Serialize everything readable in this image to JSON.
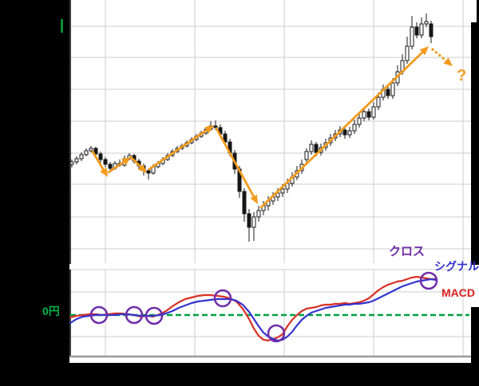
{
  "labels": {
    "cross": "クロス",
    "signal": "シグナル",
    "macd": "MACD",
    "zero_yen": "0円",
    "question": "?"
  },
  "colors": {
    "arrow_orange": "#f29b1d",
    "macd_red": "#d93025",
    "signal_blue": "#3434cf",
    "cross_purple": "#6f2da8",
    "zero_green": "#00a040",
    "candle_up_fill": "#ffffff",
    "candle_down_fill": "#141414",
    "grid_gray": "#cdcdcd"
  },
  "chart_data": [
    {
      "type": "candlestick",
      "panel": "price",
      "title": "",
      "value_units": "relative price units (axis labels blacked out in source)",
      "columns": [
        "x",
        "open",
        "high",
        "low",
        "close"
      ],
      "ylim": [
        0,
        330
      ],
      "grid": true,
      "candles": [
        [
          90,
          124,
          130,
          120,
          127
        ],
        [
          96,
          127,
          134,
          124,
          131
        ],
        [
          102,
          131,
          139,
          128,
          136
        ],
        [
          108,
          136,
          144,
          134,
          141
        ],
        [
          114,
          141,
          147,
          139,
          144
        ],
        [
          120,
          144,
          146,
          134,
          137
        ],
        [
          126,
          137,
          140,
          126,
          130
        ],
        [
          132,
          130,
          133,
          120,
          124
        ],
        [
          138,
          124,
          127,
          115,
          119
        ],
        [
          144,
          119,
          128,
          117,
          125
        ],
        [
          150,
          125,
          130,
          121,
          123
        ],
        [
          156,
          123,
          135,
          121,
          131
        ],
        [
          162,
          131,
          138,
          129,
          135
        ],
        [
          168,
          135,
          137,
          125,
          128
        ],
        [
          174,
          128,
          131,
          118,
          122
        ],
        [
          180,
          122,
          125,
          110,
          116
        ],
        [
          186,
          116,
          119,
          105,
          113
        ],
        [
          192,
          113,
          124,
          111,
          121
        ],
        [
          198,
          121,
          128,
          119,
          125
        ],
        [
          204,
          125,
          133,
          123,
          130
        ],
        [
          210,
          130,
          138,
          128,
          135
        ],
        [
          216,
          135,
          143,
          133,
          140
        ],
        [
          222,
          140,
          147,
          138,
          144
        ],
        [
          228,
          144,
          150,
          142,
          147
        ],
        [
          234,
          147,
          154,
          145,
          151
        ],
        [
          240,
          151,
          158,
          149,
          155
        ],
        [
          246,
          155,
          162,
          153,
          159
        ],
        [
          252,
          159,
          166,
          157,
          163
        ],
        [
          258,
          163,
          171,
          161,
          168
        ],
        [
          264,
          168,
          178,
          166,
          172
        ],
        [
          270,
          172,
          179,
          167,
          170
        ],
        [
          276,
          170,
          174,
          158,
          162
        ],
        [
          282,
          162,
          166,
          148,
          152
        ],
        [
          288,
          152,
          156,
          134,
          138
        ],
        [
          294,
          138,
          142,
          112,
          118
        ],
        [
          300,
          118,
          122,
          82,
          90
        ],
        [
          306,
          90,
          94,
          52,
          62
        ],
        [
          312,
          62,
          68,
          27,
          45
        ],
        [
          318,
          45,
          64,
          28,
          58
        ],
        [
          324,
          58,
          72,
          52,
          66
        ],
        [
          330,
          66,
          78,
          60,
          72
        ],
        [
          336,
          72,
          84,
          66,
          78
        ],
        [
          342,
          78,
          89,
          73,
          83
        ],
        [
          348,
          83,
          94,
          78,
          88
        ],
        [
          354,
          88,
          99,
          83,
          93
        ],
        [
          360,
          93,
          106,
          88,
          100
        ],
        [
          366,
          100,
          114,
          96,
          108
        ],
        [
          372,
          108,
          122,
          104,
          116
        ],
        [
          378,
          116,
          130,
          112,
          124
        ],
        [
          384,
          130,
          144,
          126,
          140
        ],
        [
          390,
          140,
          154,
          136,
          149
        ],
        [
          396,
          149,
          152,
          134,
          139
        ],
        [
          402,
          139,
          150,
          135,
          145
        ],
        [
          408,
          145,
          156,
          141,
          151
        ],
        [
          414,
          151,
          162,
          147,
          157
        ],
        [
          420,
          157,
          167,
          153,
          162
        ],
        [
          426,
          162,
          172,
          158,
          167
        ],
        [
          432,
          167,
          170,
          156,
          161
        ],
        [
          438,
          161,
          171,
          157,
          166
        ],
        [
          444,
          166,
          180,
          162,
          174
        ],
        [
          450,
          174,
          188,
          170,
          182
        ],
        [
          456,
          182,
          196,
          178,
          190
        ],
        [
          462,
          190,
          194,
          179,
          183
        ],
        [
          468,
          183,
          202,
          180,
          196
        ],
        [
          474,
          196,
          214,
          192,
          208
        ],
        [
          480,
          208,
          224,
          204,
          218
        ],
        [
          486,
          218,
          222,
          206,
          210
        ],
        [
          492,
          210,
          232,
          206,
          226
        ],
        [
          498,
          226,
          248,
          222,
          240
        ],
        [
          504,
          240,
          262,
          236,
          254
        ],
        [
          510,
          254,
          284,
          250,
          272
        ],
        [
          516,
          272,
          310,
          268,
          296
        ],
        [
          522,
          296,
          302,
          282,
          286
        ],
        [
          528,
          286,
          308,
          282,
          300
        ],
        [
          534,
          300,
          313,
          296,
          303
        ],
        [
          540,
          300,
          304,
          276,
          284
        ]
      ],
      "annotations": {
        "arrow_color": "#f29b1d",
        "trend_arrows": [
          {
            "from": [
              116,
              140
            ],
            "to": [
              135,
              108
            ],
            "style": "solid"
          },
          {
            "from": [
              136,
              114
            ],
            "to": [
              164,
              133
            ],
            "style": "solid"
          },
          {
            "from": [
              164,
              133
            ],
            "to": [
              184,
              113
            ],
            "style": "solid"
          },
          {
            "from": [
              187,
              118
            ],
            "to": [
              268,
              173
            ],
            "style": "solid"
          },
          {
            "from": [
              271,
              169
            ],
            "to": [
              323,
              74
            ],
            "style": "solid"
          },
          {
            "from": [
              327,
              70
            ],
            "to": [
              537,
              272
            ],
            "style": "solid"
          },
          {
            "from": [
              542,
              268
            ],
            "to": [
              567,
              247
            ],
            "style": "dotted"
          }
        ],
        "question_label": "?"
      }
    },
    {
      "type": "line",
      "panel": "macd",
      "value_units": "relative indicator units, 0 at dashed line",
      "grid": true,
      "series": [
        {
          "name": "MACD",
          "color": "#d93025",
          "points": [
            [
              88,
              -3
            ],
            [
              96,
              -1
            ],
            [
              104,
              0
            ],
            [
              112,
              1
            ],
            [
              120,
              1
            ],
            [
              128,
              0
            ],
            [
              136,
              1
            ],
            [
              144,
              2
            ],
            [
              152,
              2
            ],
            [
              160,
              1
            ],
            [
              168,
              0
            ],
            [
              176,
              -2
            ],
            [
              184,
              -1
            ],
            [
              192,
              -2
            ],
            [
              200,
              1
            ],
            [
              208,
              5
            ],
            [
              216,
              11
            ],
            [
              224,
              16
            ],
            [
              232,
              20
            ],
            [
              240,
              22
            ],
            [
              248,
              24
            ],
            [
              256,
              25
            ],
            [
              264,
              25
            ],
            [
              272,
              24
            ],
            [
              280,
              23
            ],
            [
              288,
              21
            ],
            [
              296,
              17
            ],
            [
              304,
              8
            ],
            [
              312,
              -5
            ],
            [
              318,
              -17
            ],
            [
              324,
              -26
            ],
            [
              330,
              -31
            ],
            [
              336,
              -32
            ],
            [
              342,
              -30
            ],
            [
              348,
              -28
            ],
            [
              354,
              -24
            ],
            [
              360,
              -14
            ],
            [
              366,
              -6
            ],
            [
              372,
              0
            ],
            [
              378,
              5
            ],
            [
              384,
              8
            ],
            [
              390,
              9
            ],
            [
              396,
              10
            ],
            [
              402,
              12
            ],
            [
              408,
              13
            ],
            [
              414,
              13
            ],
            [
              420,
              14
            ],
            [
              426,
              14
            ],
            [
              432,
              15
            ],
            [
              438,
              14
            ],
            [
              444,
              15
            ],
            [
              450,
              16
            ],
            [
              456,
              18
            ],
            [
              462,
              21
            ],
            [
              468,
              26
            ],
            [
              474,
              31
            ],
            [
              480,
              35
            ],
            [
              486,
              38
            ],
            [
              492,
              40
            ],
            [
              498,
              42
            ],
            [
              504,
              43
            ],
            [
              510,
              45
            ],
            [
              516,
              47
            ],
            [
              522,
              48
            ],
            [
              528,
              47
            ],
            [
              534,
              46
            ],
            [
              540,
              45
            ],
            [
              546,
              45
            ]
          ]
        },
        {
          "name": "シグナル",
          "color": "#3434cf",
          "points": [
            [
              88,
              -10
            ],
            [
              96,
              -5
            ],
            [
              104,
              -2
            ],
            [
              112,
              -1
            ],
            [
              120,
              0
            ],
            [
              128,
              0
            ],
            [
              136,
              0
            ],
            [
              144,
              0
            ],
            [
              152,
              1
            ],
            [
              160,
              1
            ],
            [
              168,
              0
            ],
            [
              176,
              -1
            ],
            [
              184,
              -1
            ],
            [
              192,
              -1
            ],
            [
              200,
              0
            ],
            [
              208,
              2
            ],
            [
              216,
              5
            ],
            [
              224,
              9
            ],
            [
              232,
              12
            ],
            [
              240,
              15
            ],
            [
              248,
              17
            ],
            [
              256,
              18
            ],
            [
              264,
              19
            ],
            [
              272,
              20
            ],
            [
              280,
              20
            ],
            [
              288,
              20
            ],
            [
              296,
              18
            ],
            [
              304,
              13
            ],
            [
              312,
              4
            ],
            [
              318,
              -5
            ],
            [
              324,
              -14
            ],
            [
              330,
              -22
            ],
            [
              336,
              -27
            ],
            [
              342,
              -30
            ],
            [
              348,
              -32
            ],
            [
              354,
              -31
            ],
            [
              360,
              -27
            ],
            [
              366,
              -21
            ],
            [
              372,
              -13
            ],
            [
              378,
              -6
            ],
            [
              384,
              -1
            ],
            [
              390,
              3
            ],
            [
              396,
              5
            ],
            [
              402,
              7
            ],
            [
              408,
              9
            ],
            [
              414,
              10
            ],
            [
              420,
              11
            ],
            [
              426,
              12
            ],
            [
              432,
              13
            ],
            [
              438,
              13
            ],
            [
              444,
              14
            ],
            [
              450,
              14
            ],
            [
              456,
              15
            ],
            [
              462,
              16
            ],
            [
              468,
              18
            ],
            [
              474,
              21
            ],
            [
              480,
              24
            ],
            [
              486,
              27
            ],
            [
              492,
              30
            ],
            [
              498,
              33
            ],
            [
              504,
              36
            ],
            [
              510,
              38
            ],
            [
              516,
              40
            ],
            [
              522,
              42
            ],
            [
              528,
              43
            ],
            [
              534,
              44
            ],
            [
              540,
              45
            ],
            [
              546,
              44
            ]
          ]
        }
      ],
      "zero_line": {
        "value": 0,
        "label": "0円",
        "color": "#00a040",
        "style": "dashed"
      },
      "cross_markers": {
        "label": "クロス",
        "color": "#6f2da8",
        "radius": 10,
        "points": [
          [
            124,
            0
          ],
          [
            168,
            0
          ],
          [
            193,
            -1
          ],
          [
            279,
            21
          ],
          [
            346,
            -23
          ],
          [
            537,
            43
          ]
        ]
      }
    }
  ]
}
